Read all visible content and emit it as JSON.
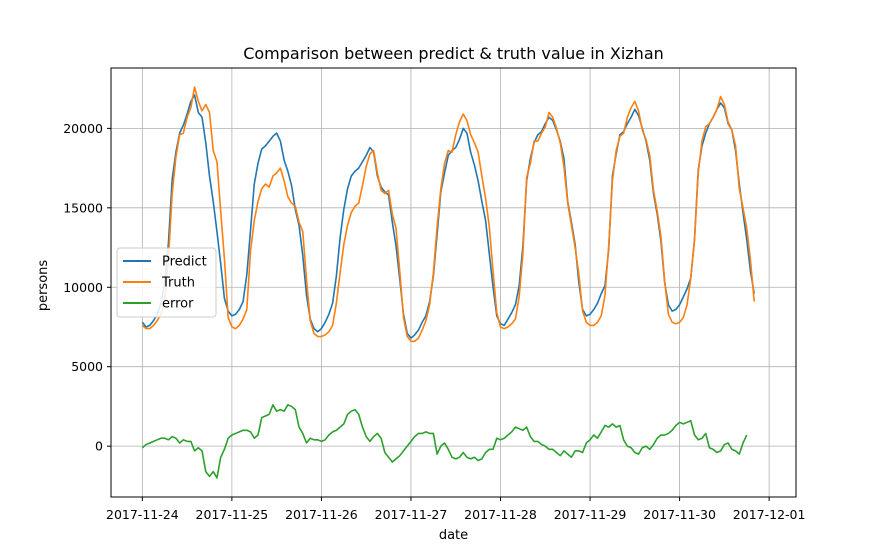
{
  "chart_data": {
    "type": "line",
    "title": "Comparison between predict & truth value in Xizhan",
    "xlabel": "date",
    "ylabel": "persons",
    "x_tick_labels": [
      "2017-11-24",
      "2017-11-25",
      "2017-11-26",
      "2017-11-27",
      "2017-11-28",
      "2017-11-29",
      "2017-11-30",
      "2017-12-01"
    ],
    "y_ticks": [
      0,
      5000,
      10000,
      15000,
      20000
    ],
    "y_tick_labels": [
      "0",
      "5000",
      "10000",
      "15000",
      "20000"
    ],
    "xlim": [
      0,
      7
    ],
    "ylim": [
      -3200,
      23800
    ],
    "grid": true,
    "legend_position": "center-left",
    "sample_step_hours": 1,
    "series": [
      {
        "name": "Predict",
        "color": "#1f77b4",
        "values": [
          7800,
          7500,
          7600,
          7900,
          8300,
          9000,
          10300,
          12800,
          16800,
          18500,
          19700,
          20200,
          20900,
          21700,
          22100,
          21000,
          20700,
          19100,
          17000,
          15400,
          13500,
          11500,
          9300,
          8500,
          8200,
          8300,
          8600,
          9100,
          10800,
          13600,
          16500,
          17800,
          18700,
          18900,
          19200,
          19500,
          19700,
          19200,
          18000,
          17300,
          16400,
          14900,
          13900,
          12000,
          9500,
          8000,
          7400,
          7200,
          7400,
          7800,
          8300,
          9000,
          10700,
          13100,
          14900,
          16200,
          17000,
          17300,
          17500,
          17900,
          18300,
          18800,
          18500,
          17000,
          16300,
          16000,
          15800,
          14100,
          12600,
          10500,
          8300,
          7100,
          6800,
          7000,
          7300,
          7800,
          8200,
          9100,
          10700,
          13300,
          16000,
          17200,
          18300,
          18600,
          18800,
          19300,
          20000,
          19700,
          18500,
          17700,
          16700,
          15400,
          14200,
          12100,
          10000,
          8200,
          7700,
          7600,
          8000,
          8400,
          8900,
          10100,
          12600,
          16700,
          18100,
          19100,
          19600,
          19800,
          20300,
          20700,
          20500,
          19900,
          19200,
          18100,
          15400,
          14100,
          12700,
          10300,
          8600,
          8200,
          8300,
          8600,
          9000,
          9600,
          10100,
          12400,
          17000,
          18400,
          19600,
          19800,
          20300,
          20700,
          21200,
          20800,
          20000,
          19200,
          18000,
          15900,
          14600,
          12900,
          10300,
          8900,
          8500,
          8600,
          8900,
          9400,
          9900,
          10600,
          13000,
          17400,
          18900,
          19700,
          20300,
          20700,
          21200,
          21600,
          21300,
          20300,
          19900,
          18600,
          16500,
          14700,
          13000,
          11000,
          9600
        ]
      },
      {
        "name": "Truth",
        "color": "#ff7f0e",
        "values": [
          7600,
          7400,
          7400,
          7600,
          7900,
          8300,
          9200,
          11800,
          15900,
          18200,
          19600,
          19700,
          20700,
          21300,
          22600,
          21700,
          21100,
          21500,
          21000,
          18600,
          17900,
          14800,
          11800,
          8100,
          7500,
          7400,
          7600,
          8000,
          8600,
          12300,
          14200,
          15400,
          16200,
          16500,
          16300,
          17000,
          17200,
          17500,
          16700,
          15700,
          15300,
          15100,
          14100,
          13500,
          10500,
          7900,
          7100,
          6900,
          6900,
          7000,
          7200,
          7600,
          9000,
          10900,
          12700,
          13900,
          14700,
          15100,
          15300,
          16400,
          17600,
          18400,
          18600,
          17200,
          16100,
          15900,
          16100,
          14600,
          13700,
          11000,
          8100,
          6900,
          6600,
          6600,
          6800,
          7300,
          7900,
          8900,
          10900,
          13800,
          16200,
          17800,
          18600,
          18500,
          19600,
          20400,
          20900,
          20500,
          19600,
          19100,
          18500,
          17000,
          15600,
          13800,
          11000,
          8400,
          7500,
          7400,
          7500,
          7700,
          8000,
          9400,
          12100,
          16900,
          17800,
          19200,
          19200,
          19700,
          20100,
          21000,
          20700,
          20000,
          19100,
          17600,
          15300,
          13900,
          12500,
          10800,
          8500,
          7800,
          7600,
          7600,
          7800,
          8200,
          9500,
          12600,
          16700,
          18600,
          19500,
          19700,
          20700,
          21300,
          21700,
          21100,
          19900,
          19300,
          18300,
          16100,
          14800,
          13200,
          10400,
          8300,
          7800,
          7700,
          7800,
          8100,
          8900,
          10600,
          13000,
          17200,
          19200,
          20100,
          20300,
          20700,
          21200,
          22000,
          21500,
          20400,
          19900,
          18900,
          16200,
          15000,
          13700,
          11700,
          9100
        ]
      },
      {
        "name": "error",
        "color": "#2ca02c",
        "values": [
          -100,
          100,
          200,
          300,
          400,
          500,
          500,
          400,
          600,
          500,
          200,
          400,
          300,
          300,
          -300,
          -100,
          -300,
          -1600,
          -1900,
          -1600,
          -2000,
          -700,
          -200,
          500,
          700,
          800,
          900,
          1000,
          1000,
          900,
          500,
          700,
          1800,
          1900,
          2000,
          2600,
          2200,
          2300,
          2200,
          2600,
          2500,
          2300,
          1200,
          800,
          200,
          500,
          400,
          400,
          300,
          400,
          700,
          900,
          1000,
          1200,
          1400,
          2000,
          2200,
          2300,
          2000,
          1200,
          600,
          300,
          600,
          800,
          500,
          -400,
          -700,
          -1000,
          -800,
          -600,
          -300,
          0,
          300,
          600,
          800,
          800,
          900,
          800,
          800,
          -500,
          0,
          200,
          -200,
          -700,
          -800,
          -700,
          -400,
          -700,
          -800,
          -700,
          -900,
          -800,
          -400,
          -200,
          -200,
          500,
          400,
          500,
          700,
          900,
          1200,
          1100,
          1000,
          1200,
          600,
          300,
          300,
          100,
          0,
          -200,
          -200,
          -400,
          -600,
          -300,
          -500,
          -700,
          -300,
          -300,
          -400,
          200,
          400,
          700,
          500,
          900,
          1300,
          1200,
          1400,
          1200,
          1300,
          400,
          0,
          -100,
          -400,
          -500,
          -100,
          0,
          -200,
          100,
          500,
          700,
          700,
          800,
          1000,
          1300,
          1500,
          1400,
          1500,
          1600,
          700,
          400,
          500,
          800,
          -100,
          -200,
          -400,
          -300,
          100,
          200,
          -200,
          -300,
          -500,
          200,
          700
        ]
      }
    ]
  }
}
